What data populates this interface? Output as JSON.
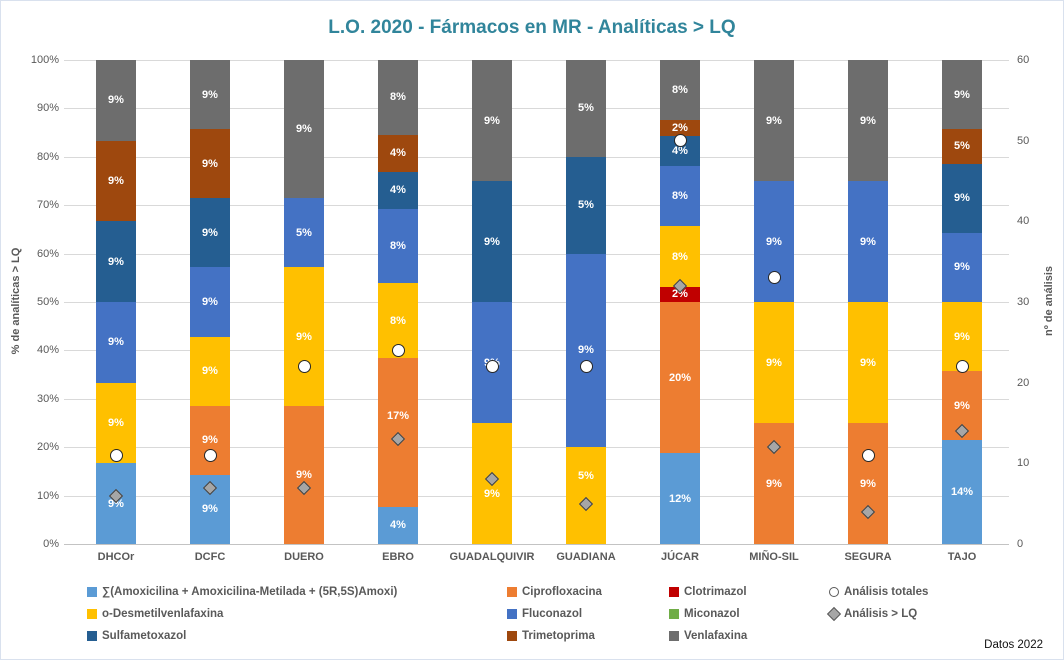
{
  "chart_data": {
    "type": "bar",
    "stacked_100": true,
    "title": "L.O. 2020 - Fármacos en MR - Analíticas > LQ",
    "title_color": "#31859B",
    "note": "Datos 2022",
    "ylabel_left": "% de analíticas > LQ",
    "ylabel_right": "nº de análisis",
    "left_axis_range": [
      0,
      100
    ],
    "right_axis_range": [
      0,
      60
    ],
    "left_axis_ticks": [
      "0%",
      "10%",
      "20%",
      "30%",
      "40%",
      "50%",
      "60%",
      "70%",
      "80%",
      "90%",
      "100%"
    ],
    "right_axis_ticks": [
      "0",
      "10",
      "20",
      "30",
      "40",
      "50",
      "60"
    ],
    "grid": "horizontal",
    "legend_position": "bottom",
    "categories": [
      "DHCOr",
      "DCFC",
      "DUERO",
      "EBRO",
      "GUADALQUIVIR",
      "GUADIANA",
      "JÚCAR",
      "MIÑO-SIL",
      "SEGURA",
      "TAJO"
    ],
    "series": [
      {
        "name": "∑(Amoxicilina + Amoxicilina-Metilada + (5R,5S)Amoxi)",
        "color": "#5B9BD5",
        "stack_pct": [
          16.67,
          14.29,
          0,
          7.69,
          0,
          0,
          18.75,
          0,
          0,
          21.43
        ],
        "labels": [
          "9%",
          "9%",
          "",
          "4%",
          "",
          "",
          "12%",
          "",
          "",
          "14%"
        ]
      },
      {
        "name": "Ciprofloxacina",
        "color": "#ED7D31",
        "stack_pct": [
          0,
          14.29,
          28.57,
          30.77,
          0,
          0,
          31.25,
          25,
          25,
          14.29
        ],
        "labels": [
          "",
          "9%",
          "9%",
          "17%",
          "",
          "",
          "20%",
          "9%",
          "9%",
          "9%"
        ]
      },
      {
        "name": "Clotrimazol",
        "color": "#C00000",
        "stack_pct": [
          0,
          0,
          0,
          0,
          0,
          0,
          3.13,
          0,
          0,
          0
        ],
        "labels": [
          "",
          "",
          "",
          "",
          "",
          "",
          "2%",
          "",
          "",
          ""
        ]
      },
      {
        "name": "o-Desmetilvenlafaxina",
        "color": "#FFC000",
        "stack_pct": [
          16.67,
          14.29,
          28.57,
          15.38,
          25,
          20,
          12.5,
          25,
          25,
          14.29
        ],
        "labels": [
          "9%",
          "9%",
          "9%",
          "8%",
          "9%",
          "5%",
          "8%",
          "9%",
          "9%",
          "9%"
        ]
      },
      {
        "name": "Fluconazol",
        "color": "#4472C4",
        "stack_pct": [
          16.67,
          14.29,
          14.29,
          15.38,
          25,
          40,
          12.5,
          25,
          25,
          14.29
        ],
        "labels": [
          "9%",
          "9%",
          "5%",
          "8%",
          "9%",
          "9%",
          "8%",
          "9%",
          "9%",
          "9%"
        ]
      },
      {
        "name": "Miconazol",
        "color": "#70AD47",
        "stack_pct": [
          0,
          0,
          0,
          0,
          0,
          0,
          0,
          0,
          0,
          0
        ],
        "labels": [
          "",
          "",
          "",
          "",
          "",
          "",
          "",
          "",
          "",
          ""
        ]
      },
      {
        "name": "Sulfametoxazol",
        "color": "#255E91",
        "stack_pct": [
          16.67,
          14.29,
          0,
          7.69,
          25,
          20,
          6.25,
          0,
          0,
          14.29
        ],
        "labels": [
          "9%",
          "9%",
          "",
          "4%",
          "9%",
          "5%",
          "4%",
          "",
          "",
          "9%"
        ]
      },
      {
        "name": "Trimetoprima",
        "color": "#9E480E",
        "stack_pct": [
          16.67,
          14.29,
          0,
          7.69,
          0,
          0,
          3.13,
          0,
          0,
          7.14
        ],
        "labels": [
          "9%",
          "9%",
          "",
          "4%",
          "",
          "",
          "2%",
          "",
          "",
          "5%"
        ]
      },
      {
        "name": "Venlafaxina",
        "color": "#6D6D6D",
        "stack_pct": [
          16.65,
          14.26,
          28.57,
          15.4,
          25,
          20,
          12.49,
          25,
          25,
          14.27
        ],
        "labels": [
          "9%",
          "9%",
          "9%",
          "8%",
          "9%",
          "5%",
          "8%",
          "9%",
          "9%",
          "9%"
        ]
      }
    ],
    "marker_series": [
      {
        "name": "Análisis totales",
        "shape": "circle",
        "fill": "#FFFFFF",
        "axis": "right",
        "values": [
          11,
          11,
          22,
          24,
          22,
          22,
          50,
          33,
          11,
          22
        ]
      },
      {
        "name": "Análisis > LQ",
        "shape": "diamond",
        "fill": "#A6A6A6",
        "axis": "right",
        "values": [
          6,
          7,
          7,
          13,
          8,
          5,
          32,
          12,
          4,
          14
        ]
      }
    ],
    "label_offsets": {
      "EBRO|Ciprofloxacina": -16,
      "GUADALQUIVIR|o-Desmetilvenlafaxina": 10,
      "GUADIANA|o-Desmetilvenlafaxina": -20
    }
  }
}
